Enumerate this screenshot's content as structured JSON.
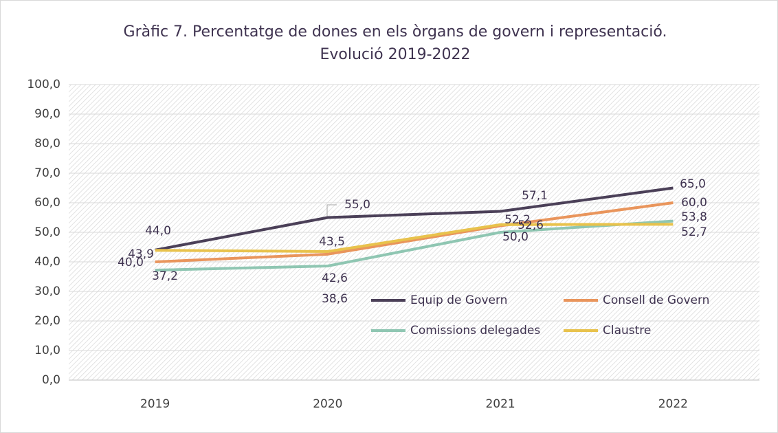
{
  "chart_data": {
    "type": "line",
    "title": [
      "Gràfic 7. Percentatge de dones en els òrgans de govern i representació.",
      "Evolució 2019-2022"
    ],
    "categories": [
      "2019",
      "2020",
      "2021",
      "2022"
    ],
    "series": [
      {
        "name": "Equip de Govern",
        "color": "#4b4058",
        "values": [
          44.0,
          55.0,
          57.1,
          65.0
        ],
        "value_labels": [
          "44,0",
          "55,0",
          "57,1",
          "65,0"
        ]
      },
      {
        "name": "Consell de Govern",
        "color": "#e9955c",
        "values": [
          40.0,
          42.6,
          52.2,
          60.0
        ],
        "value_labels": [
          "40,0",
          "42,6",
          "52,2",
          "60,0"
        ]
      },
      {
        "name": "Comissions delegades",
        "color": "#8fc6b2",
        "values": [
          37.2,
          38.6,
          50.0,
          53.8
        ],
        "value_labels": [
          "37,2",
          "38,6",
          "50,0",
          "53,8"
        ]
      },
      {
        "name": "Claustre",
        "color": "#e8c24c",
        "values": [
          43.9,
          43.5,
          52.6,
          52.7
        ],
        "value_labels": [
          "43,9",
          "43,5",
          "52,6",
          "52,7"
        ]
      }
    ],
    "ylim": [
      0,
      100
    ],
    "yticks": [
      {
        "value": 0,
        "label": "0,0"
      },
      {
        "value": 10,
        "label": "10,0"
      },
      {
        "value": 20,
        "label": "20,0"
      },
      {
        "value": 30,
        "label": "30,0"
      },
      {
        "value": 40,
        "label": "40,0"
      },
      {
        "value": 50,
        "label": "50,0"
      },
      {
        "value": 60,
        "label": "60,0"
      },
      {
        "value": 70,
        "label": "70,0"
      },
      {
        "value": 80,
        "label": "80,0"
      },
      {
        "value": 90,
        "label": "90,0"
      },
      {
        "value": 100,
        "label": "100,0"
      }
    ],
    "grid": true
  }
}
